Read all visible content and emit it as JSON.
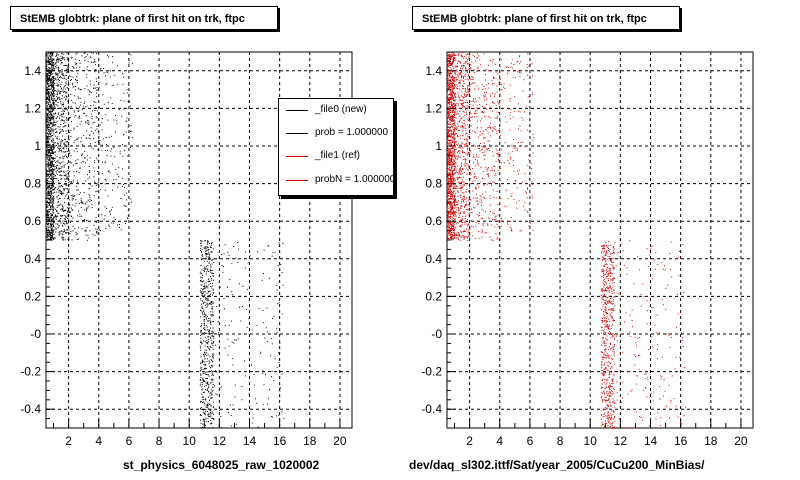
{
  "chart_data": [
    {
      "type": "scatter",
      "title": "StEMB globtrk: plane of first hit on trk, ftpc",
      "xlabel": "st_physics_6048025_raw_1020002",
      "ylabel": "",
      "xlim": [
        0.5,
        20.8
      ],
      "ylim": [
        -0.5,
        1.5
      ],
      "x_ticks": [
        "2",
        "4",
        "6",
        "8",
        "10",
        "12",
        "14",
        "16",
        "18",
        "20"
      ],
      "y_ticks": [
        "-0.4",
        "-0.2",
        "-0",
        "0.2",
        "0.4",
        "0.6",
        "0.8",
        "1",
        "1.2",
        "1.4"
      ],
      "grid": true,
      "legend_position": "top-right",
      "series": [
        {
          "name": "_file0 (new)",
          "color": "#000000",
          "regions": [
            {
              "x": [
                0.5,
                1.0
              ],
              "y": [
                0.5,
                1.5
              ],
              "density": "very high"
            },
            {
              "x": [
                1.0,
                2.0
              ],
              "y": [
                0.5,
                1.5
              ],
              "density": "high"
            },
            {
              "x": [
                2.0,
                4.0
              ],
              "y": [
                0.5,
                1.5
              ],
              "density": "medium"
            },
            {
              "x": [
                4.0,
                6.2
              ],
              "y": [
                0.55,
                1.5
              ],
              "density": "low"
            },
            {
              "x": [
                10.7,
                11.6
              ],
              "y": [
                -0.5,
                0.5
              ],
              "density": "high"
            },
            {
              "x": [
                11.6,
                16.3
              ],
              "y": [
                -0.5,
                0.5
              ],
              "density": "low"
            }
          ]
        },
        {
          "name": "_file1 (ref)",
          "color": "#d40000",
          "regions": []
        }
      ]
    },
    {
      "type": "scatter",
      "title": "StEMB globtrk: plane of first hit on trk, ftpc",
      "xlabel": "dev/daq_sl302.ittf/Sat/year_2005/CuCu200_MinBias/",
      "ylabel": "",
      "xlim": [
        0.5,
        20.8
      ],
      "ylim": [
        -0.5,
        1.5
      ],
      "x_ticks": [
        "2",
        "4",
        "6",
        "8",
        "10",
        "12",
        "14",
        "16",
        "18",
        "20"
      ],
      "y_ticks": [
        "-0.4",
        "-0.2",
        "-0",
        "0.2",
        "0.4",
        "0.6",
        "0.8",
        "1",
        "1.2",
        "1.4"
      ],
      "grid": true,
      "series": [
        {
          "name": "_file1 (ref)",
          "color": "#d40000",
          "regions": [
            {
              "x": [
                0.5,
                1.0
              ],
              "y": [
                0.5,
                1.5
              ],
              "density": "very high"
            },
            {
              "x": [
                1.0,
                2.0
              ],
              "y": [
                0.5,
                1.5
              ],
              "density": "high"
            },
            {
              "x": [
                2.0,
                4.0
              ],
              "y": [
                0.5,
                1.5
              ],
              "density": "medium"
            },
            {
              "x": [
                4.0,
                6.2
              ],
              "y": [
                0.55,
                1.5
              ],
              "density": "low"
            },
            {
              "x": [
                10.7,
                11.6
              ],
              "y": [
                -0.5,
                0.5
              ],
              "density": "high"
            },
            {
              "x": [
                11.6,
                16.3
              ],
              "y": [
                -0.5,
                0.5
              ],
              "density": "low"
            }
          ]
        }
      ]
    }
  ],
  "legend": {
    "entries": [
      {
        "label": "_file0 (new)",
        "color": "#000000"
      },
      {
        "label": "prob = 1.000000",
        "color": "#000000"
      },
      {
        "label": "_file1 (ref)",
        "color": "#d40000"
      },
      {
        "label": "probN = 1.000000",
        "color": "#d40000"
      }
    ]
  }
}
